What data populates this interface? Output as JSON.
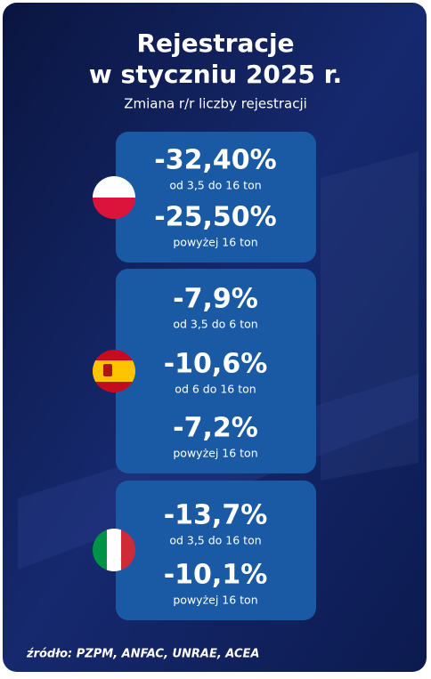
{
  "header": {
    "title_line1": "Rejestracje",
    "title_line2": "w styczniu 2025 r.",
    "subtitle": "Zmiana r/r liczby rejestracji"
  },
  "groups": [
    {
      "items": [
        {
          "value": "-32,40%",
          "description": "od 3,5 do 16 ton"
        },
        {
          "value": "-25,50%",
          "description": "powyżej 16 ton"
        }
      ]
    },
    {
      "items": [
        {
          "value": "-7,9%",
          "description": "od 3,5 do 6 ton"
        },
        {
          "value": "-10,6%",
          "description": "od 6 do 16 ton"
        },
        {
          "value": "-7,2%",
          "description": "powyżej 16 ton"
        }
      ]
    },
    {
      "items": [
        {
          "value": "-13,7%",
          "description": "od 3,5 do 16 ton"
        },
        {
          "value": "-10,1%",
          "description": "powyżej 16 ton"
        }
      ]
    }
  ],
  "footer": {
    "source": "źródło: PZPM, ANFAC, UNRAE, ACEA"
  }
}
